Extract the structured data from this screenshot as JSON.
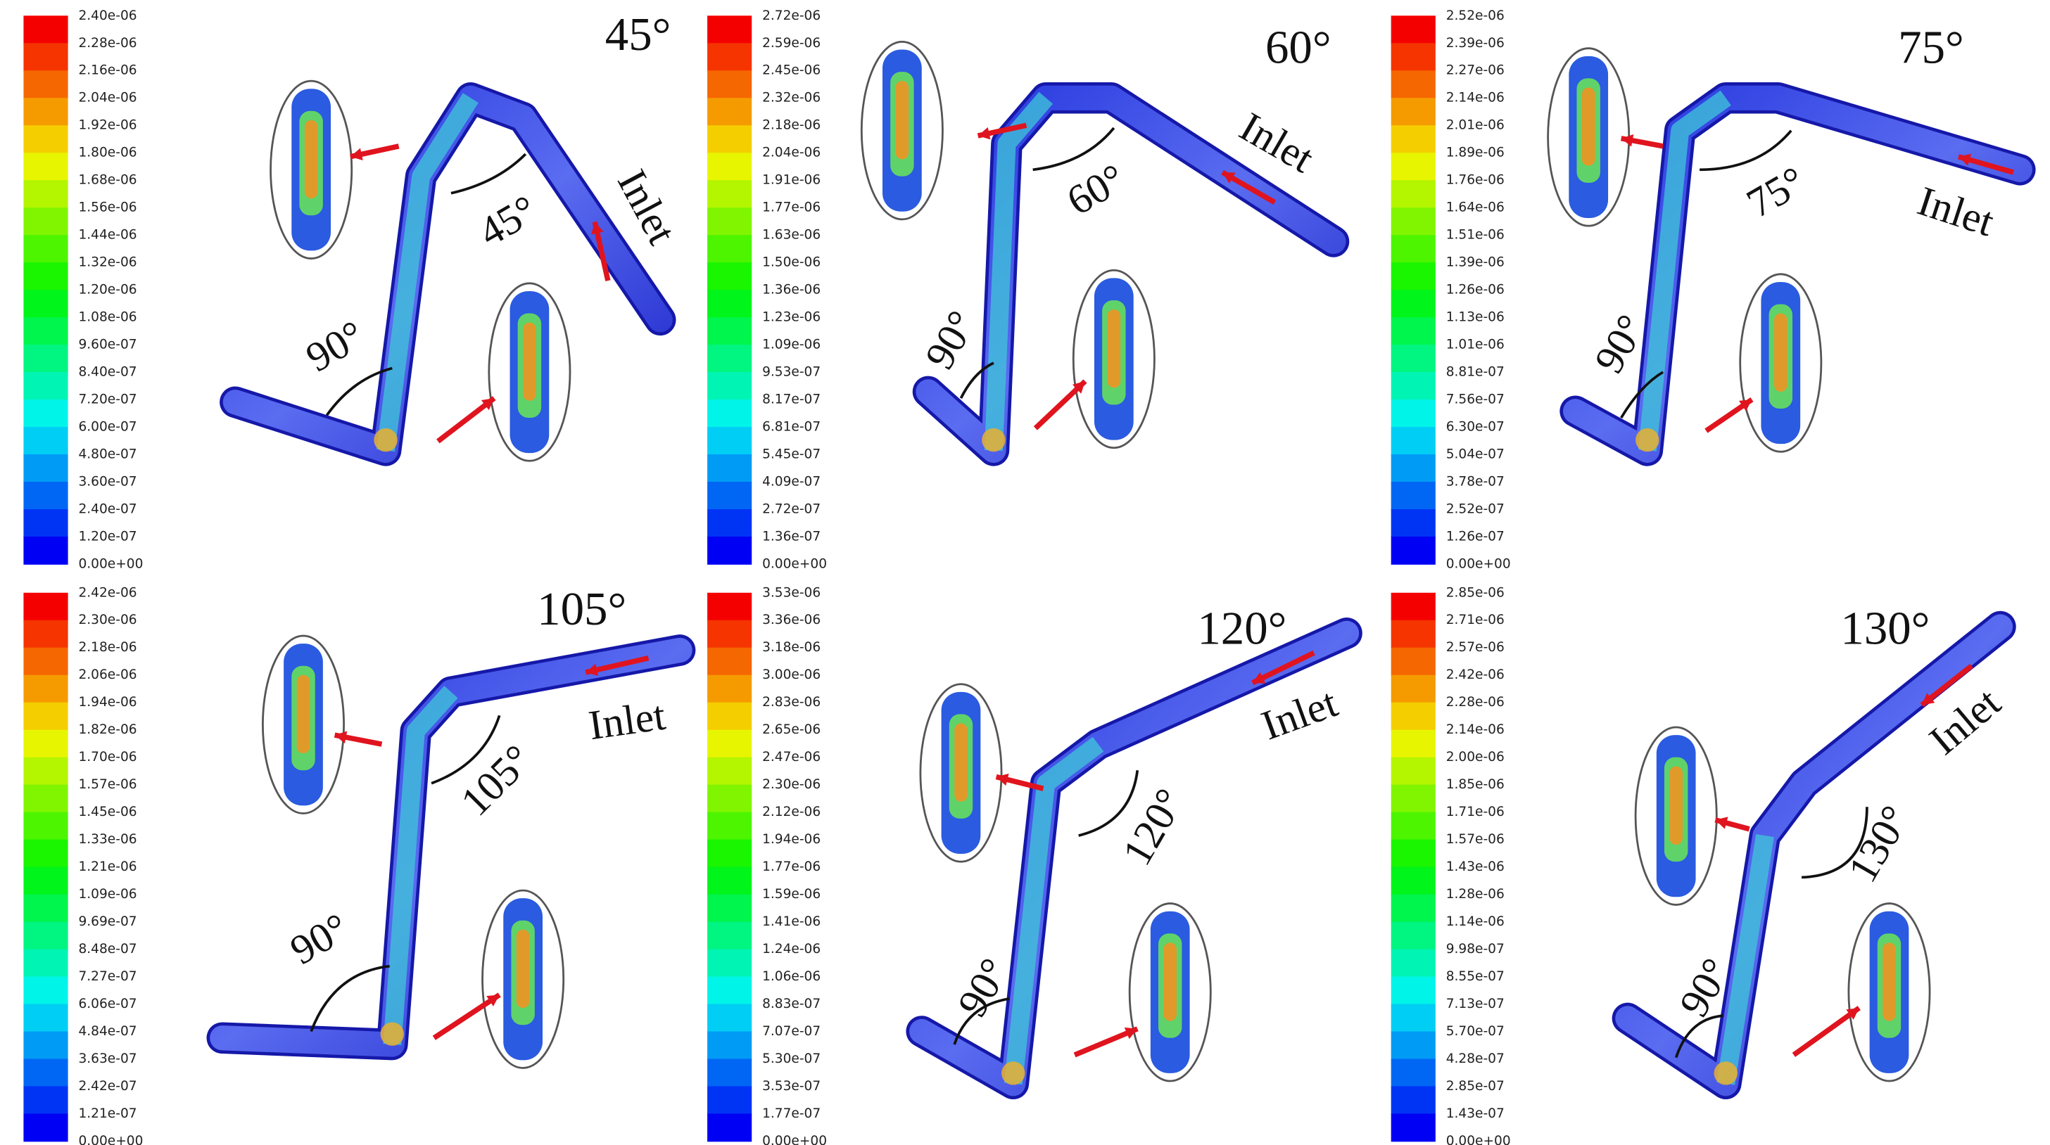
{
  "panels": [
    {
      "title": "45°",
      "bend_angle": "45°",
      "elbow_angle": "90°",
      "inlet": "Inlet",
      "colorbar": [
        "2.40e-06",
        "2.28e-06",
        "2.16e-06",
        "2.04e-06",
        "1.92e-06",
        "1.80e-06",
        "1.68e-06",
        "1.56e-06",
        "1.44e-06",
        "1.32e-06",
        "1.20e-06",
        "1.08e-06",
        "9.60e-07",
        "8.40e-07",
        "7.20e-07",
        "6.00e-07",
        "4.80e-07",
        "3.60e-07",
        "2.40e-07",
        "1.20e-07",
        "0.00e+00"
      ]
    },
    {
      "title": "60°",
      "bend_angle": "60°",
      "elbow_angle": "90°",
      "inlet": "Inlet",
      "colorbar": [
        "2.72e-06",
        "2.59e-06",
        "2.45e-06",
        "2.32e-06",
        "2.18e-06",
        "2.04e-06",
        "1.91e-06",
        "1.77e-06",
        "1.63e-06",
        "1.50e-06",
        "1.36e-06",
        "1.23e-06",
        "1.09e-06",
        "9.53e-07",
        "8.17e-07",
        "6.81e-07",
        "5.45e-07",
        "4.09e-07",
        "2.72e-07",
        "1.36e-07",
        "0.00e+00"
      ]
    },
    {
      "title": "75°",
      "bend_angle": "75°",
      "elbow_angle": "90°",
      "inlet": "Inlet",
      "colorbar": [
        "2.52e-06",
        "2.39e-06",
        "2.27e-06",
        "2.14e-06",
        "2.01e-06",
        "1.89e-06",
        "1.76e-06",
        "1.64e-06",
        "1.51e-06",
        "1.39e-06",
        "1.26e-06",
        "1.13e-06",
        "1.01e-06",
        "8.81e-07",
        "7.56e-07",
        "6.30e-07",
        "5.04e-07",
        "3.78e-07",
        "2.52e-07",
        "1.26e-07",
        "0.00e+00"
      ]
    },
    {
      "title": "105°",
      "bend_angle": "105°",
      "elbow_angle": "90°",
      "inlet": "Inlet",
      "colorbar": [
        "2.42e-06",
        "2.30e-06",
        "2.18e-06",
        "2.06e-06",
        "1.94e-06",
        "1.82e-06",
        "1.70e-06",
        "1.57e-06",
        "1.45e-06",
        "1.33e-06",
        "1.21e-06",
        "1.09e-06",
        "9.69e-07",
        "8.48e-07",
        "7.27e-07",
        "6.06e-07",
        "4.84e-07",
        "3.63e-07",
        "2.42e-07",
        "1.21e-07",
        "0.00e+00"
      ]
    },
    {
      "title": "120°",
      "bend_angle": "120°",
      "elbow_angle": "90°",
      "inlet": "Inlet",
      "colorbar": [
        "3.53e-06",
        "3.36e-06",
        "3.18e-06",
        "3.00e-06",
        "2.83e-06",
        "2.65e-06",
        "2.47e-06",
        "2.30e-06",
        "2.12e-06",
        "1.94e-06",
        "1.77e-06",
        "1.59e-06",
        "1.41e-06",
        "1.24e-06",
        "1.06e-06",
        "8.83e-07",
        "7.07e-07",
        "5.30e-07",
        "3.53e-07",
        "1.77e-07",
        "0.00e+00"
      ]
    },
    {
      "title": "130°",
      "bend_angle": "130°",
      "elbow_angle": "90°",
      "inlet": "Inlet",
      "colorbar": [
        "2.85e-06",
        "2.71e-06",
        "2.57e-06",
        "2.42e-06",
        "2.28e-06",
        "2.14e-06",
        "2.00e-06",
        "1.85e-06",
        "1.71e-06",
        "1.57e-06",
        "1.43e-06",
        "1.28e-06",
        "1.14e-06",
        "9.98e-07",
        "8.55e-07",
        "7.13e-07",
        "5.70e-07",
        "4.28e-07",
        "2.85e-07",
        "1.43e-07",
        "0.00e+00"
      ]
    }
  ]
}
